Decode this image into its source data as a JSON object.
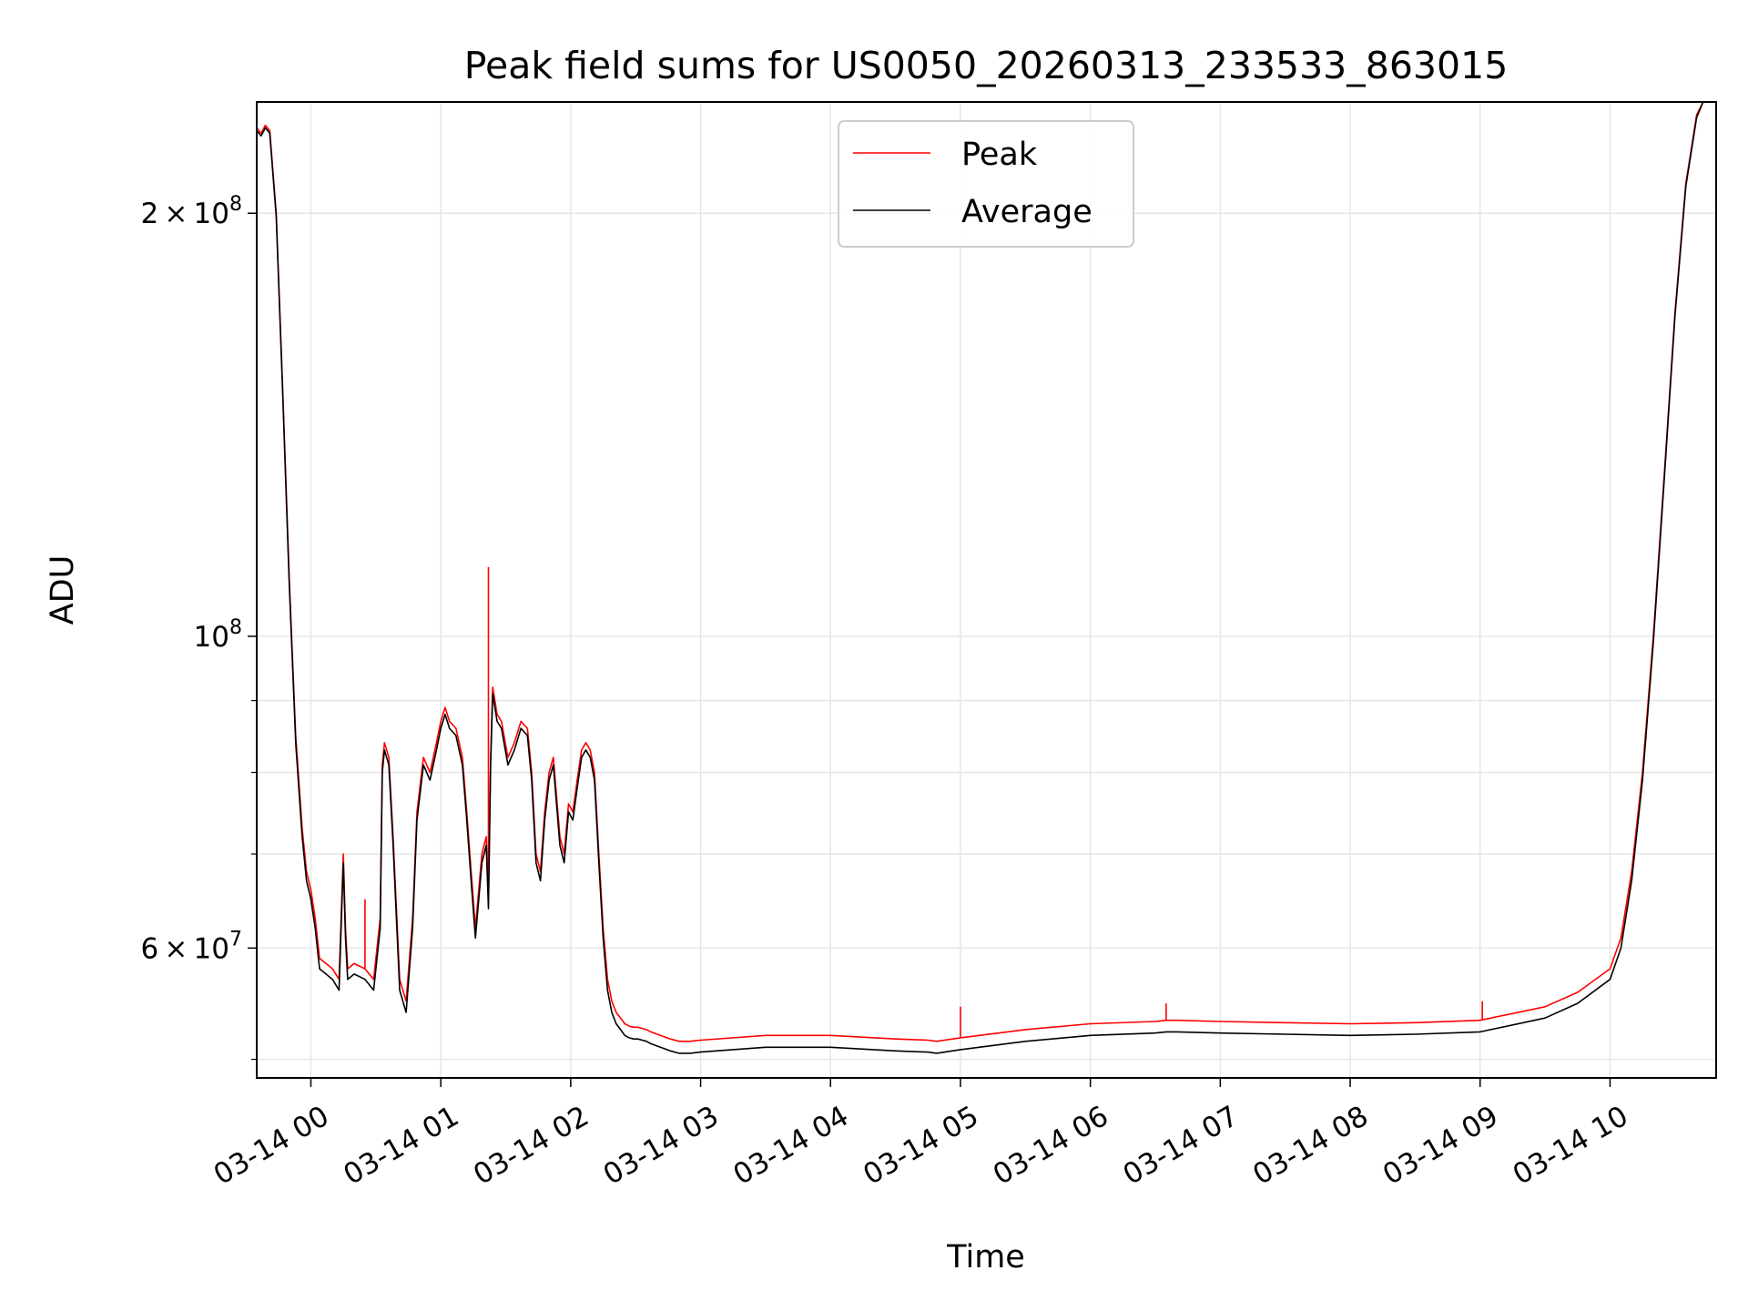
{
  "chart_data": {
    "type": "line",
    "title": "Peak field sums for US0050_20260313_233533_863015",
    "xlabel": "Time",
    "ylabel": "ADU",
    "y_scale": "log",
    "ylim": [
      48500000,
      240000000
    ],
    "xlim": [
      "03-13 23:35",
      "03-14 10:49"
    ],
    "grid": true,
    "legend_position": "top-center",
    "x_ticks": [
      {
        "at": "03-14 00:00",
        "label": "03-14 00"
      },
      {
        "at": "03-14 01:00",
        "label": "03-14 01"
      },
      {
        "at": "03-14 02:00",
        "label": "03-14 02"
      },
      {
        "at": "03-14 03:00",
        "label": "03-14 03"
      },
      {
        "at": "03-14 04:00",
        "label": "03-14 04"
      },
      {
        "at": "03-14 05:00",
        "label": "03-14 05"
      },
      {
        "at": "03-14 06:00",
        "label": "03-14 06"
      },
      {
        "at": "03-14 07:00",
        "label": "03-14 07"
      },
      {
        "at": "03-14 08:00",
        "label": "03-14 08"
      },
      {
        "at": "03-14 09:00",
        "label": "03-14 09"
      },
      {
        "at": "03-14 10:00",
        "label": "03-14 10"
      }
    ],
    "y_ticks": [
      {
        "value": 60000000,
        "mantissa": "6",
        "exp": "7"
      },
      {
        "value": 100000000,
        "mantissa": "",
        "exp": "8"
      },
      {
        "value": 200000000,
        "mantissa": "2",
        "exp": "8"
      }
    ],
    "y_minor_ticks": [
      50000000,
      70000000,
      80000000,
      90000000
    ],
    "series": [
      {
        "name": "Peak",
        "color": "#ff0000",
        "x": [
          "03-13 23:35",
          "03-13 23:37",
          "03-13 23:39",
          "03-13 23:41",
          "03-13 23:44",
          "03-13 23:47",
          "03-13 23:50",
          "03-13 23:53",
          "03-13 23:56",
          "03-13 23:58",
          "03-14 00:00",
          "03-14 00:02",
          "03-14 00:04",
          "03-14 00:07",
          "03-14 00:10",
          "03-14 00:13",
          "03-14 00:15",
          "03-14 00:16",
          "03-14 00:17",
          "03-14 00:20",
          "03-14 00:25",
          "03-14 00:29",
          "03-14 00:32",
          "03-14 00:33",
          "03-14 00:34",
          "03-14 00:36",
          "03-14 00:38",
          "03-14 00:41",
          "03-14 00:44",
          "03-14 00:47",
          "03-14 00:49",
          "03-14 00:52",
          "03-14 00:55",
          "03-14 00:58",
          "03-14 01:00",
          "03-14 01:02",
          "03-14 01:04",
          "03-14 01:07",
          "03-14 01:10",
          "03-14 01:12",
          "03-14 01:14",
          "03-14 01:16",
          "03-14 01:19",
          "03-14 01:21",
          "03-14 01:22",
          "03-14 01:23",
          "03-14 01:24",
          "03-14 01:25",
          "03-14 01:26",
          "03-14 01:28",
          "03-14 01:31",
          "03-14 01:34",
          "03-14 01:37",
          "03-14 01:40",
          "03-14 01:42",
          "03-14 01:44",
          "03-14 01:46",
          "03-14 01:48",
          "03-14 01:50",
          "03-14 01:52",
          "03-14 01:55",
          "03-14 01:57",
          "03-14 01:59",
          "03-14 02:01",
          "03-14 02:03",
          "03-14 02:05",
          "03-14 02:07",
          "03-14 02:09",
          "03-14 02:11",
          "03-14 02:13",
          "03-14 02:15",
          "03-14 02:17",
          "03-14 02:19",
          "03-14 02:21",
          "03-14 02:23",
          "03-14 02:25",
          "03-14 02:27",
          "03-14 02:29",
          "03-14 02:31",
          "03-14 02:33",
          "03-14 02:35",
          "03-14 02:37",
          "03-14 02:40",
          "03-14 02:43",
          "03-14 02:46",
          "03-14 02:50",
          "03-14 02:55",
          "03-14 03:00",
          "03-14 03:30",
          "03-14 04:00",
          "03-14 04:30",
          "03-14 04:45",
          "03-14 04:49",
          "03-14 05:00",
          "03-14 05:30",
          "03-14 06:00",
          "03-14 06:30",
          "03-14 06:35",
          "03-14 06:40",
          "03-14 07:00",
          "03-14 07:30",
          "03-14 08:00",
          "03-14 08:30",
          "03-14 09:00",
          "03-14 09:30",
          "03-14 09:45",
          "03-14 10:00",
          "03-14 10:05",
          "03-14 10:10",
          "03-14 10:15",
          "03-14 10:20",
          "03-14 10:25",
          "03-14 10:30",
          "03-14 10:35",
          "03-14 10:40",
          "03-14 10:43",
          "03-14 10:46",
          "03-14 10:49"
        ],
        "values": [
          230000000,
          228000000,
          231000000,
          229000000,
          200000000,
          150000000,
          110000000,
          85000000,
          73000000,
          68000000,
          66000000,
          63000000,
          59000000,
          58500000,
          58000000,
          57000000,
          70000000,
          62000000,
          58000000,
          58500000,
          58000000,
          57000000,
          63000000,
          81000000,
          84000000,
          82000000,
          72000000,
          57000000,
          55000000,
          63000000,
          75000000,
          82000000,
          80000000,
          84000000,
          87000000,
          89000000,
          87000000,
          86000000,
          82000000,
          75000000,
          68000000,
          62000000,
          70000000,
          72000000,
          65000000,
          82000000,
          92000000,
          90000000,
          88000000,
          87000000,
          82000000,
          84000000,
          87000000,
          86000000,
          80000000,
          70000000,
          68000000,
          75000000,
          80000000,
          82000000,
          72000000,
          70000000,
          76000000,
          75000000,
          79000000,
          83000000,
          84000000,
          83000000,
          80000000,
          70000000,
          62000000,
          57000000,
          55000000,
          54000000,
          53500000,
          53000000,
          52800000,
          52700000,
          52700000,
          52600000,
          52500000,
          52300000,
          52100000,
          51900000,
          51700000,
          51500000,
          51500000,
          51600000,
          52000000,
          52000000,
          51700000,
          51600000,
          51500000,
          51800000,
          52500000,
          53000000,
          53200000,
          53300000,
          53300000,
          53200000,
          53100000,
          53000000,
          53100000,
          53300000,
          54500000,
          55800000,
          58000000,
          61000000,
          68000000,
          80000000,
          100000000,
          130000000,
          170000000,
          210000000,
          235000000,
          240000000,
          240000000,
          240000000
        ],
        "spikes": [
          {
            "x": "03-14 00:25",
            "value": 65000000
          },
          {
            "x": "03-14 01:22",
            "value": 112000000
          },
          {
            "x": "03-14 05:00",
            "value": 54500000
          },
          {
            "x": "03-14 06:35",
            "value": 54800000
          },
          {
            "x": "03-14 09:01",
            "value": 55000000
          }
        ]
      },
      {
        "name": "Average",
        "color": "#000000",
        "x": [
          "03-13 23:35",
          "03-13 23:37",
          "03-13 23:39",
          "03-13 23:41",
          "03-13 23:44",
          "03-13 23:47",
          "03-13 23:50",
          "03-13 23:53",
          "03-13 23:56",
          "03-13 23:58",
          "03-14 00:00",
          "03-14 00:02",
          "03-14 00:04",
          "03-14 00:07",
          "03-14 00:10",
          "03-14 00:13",
          "03-14 00:15",
          "03-14 00:16",
          "03-14 00:17",
          "03-14 00:20",
          "03-14 00:25",
          "03-14 00:29",
          "03-14 00:32",
          "03-14 00:33",
          "03-14 00:34",
          "03-14 00:36",
          "03-14 00:38",
          "03-14 00:41",
          "03-14 00:44",
          "03-14 00:47",
          "03-14 00:49",
          "03-14 00:52",
          "03-14 00:55",
          "03-14 00:58",
          "03-14 01:00",
          "03-14 01:02",
          "03-14 01:04",
          "03-14 01:07",
          "03-14 01:10",
          "03-14 01:12",
          "03-14 01:14",
          "03-14 01:16",
          "03-14 01:19",
          "03-14 01:21",
          "03-14 01:22",
          "03-14 01:23",
          "03-14 01:24",
          "03-14 01:25",
          "03-14 01:26",
          "03-14 01:28",
          "03-14 01:31",
          "03-14 01:34",
          "03-14 01:37",
          "03-14 01:40",
          "03-14 01:42",
          "03-14 01:44",
          "03-14 01:46",
          "03-14 01:48",
          "03-14 01:50",
          "03-14 01:52",
          "03-14 01:55",
          "03-14 01:57",
          "03-14 01:59",
          "03-14 02:01",
          "03-14 02:03",
          "03-14 02:05",
          "03-14 02:07",
          "03-14 02:09",
          "03-14 02:11",
          "03-14 02:13",
          "03-14 02:15",
          "03-14 02:17",
          "03-14 02:19",
          "03-14 02:21",
          "03-14 02:23",
          "03-14 02:25",
          "03-14 02:27",
          "03-14 02:29",
          "03-14 02:31",
          "03-14 02:33",
          "03-14 02:35",
          "03-14 02:37",
          "03-14 02:40",
          "03-14 02:43",
          "03-14 02:46",
          "03-14 02:50",
          "03-14 02:55",
          "03-14 03:00",
          "03-14 03:30",
          "03-14 04:00",
          "03-14 04:30",
          "03-14 04:45",
          "03-14 04:49",
          "03-14 05:00",
          "03-14 05:30",
          "03-14 06:00",
          "03-14 06:30",
          "03-14 06:35",
          "03-14 06:40",
          "03-14 07:00",
          "03-14 07:30",
          "03-14 08:00",
          "03-14 08:30",
          "03-14 09:00",
          "03-14 09:30",
          "03-14 09:45",
          "03-14 10:00",
          "03-14 10:05",
          "03-14 10:10",
          "03-14 10:15",
          "03-14 10:20",
          "03-14 10:25",
          "03-14 10:30",
          "03-14 10:35",
          "03-14 10:40",
          "03-14 10:43",
          "03-14 10:46",
          "03-14 10:49"
        ],
        "values": [
          229000000,
          227000000,
          230000000,
          228000000,
          199000000,
          149000000,
          109000000,
          84000000,
          72000000,
          67000000,
          65000000,
          62000000,
          58000000,
          57500000,
          57000000,
          56000000,
          69000000,
          61000000,
          57000000,
          57500000,
          57000000,
          56000000,
          62000000,
          80000000,
          83000000,
          81000000,
          71000000,
          56000000,
          54000000,
          62000000,
          74000000,
          81000000,
          79000000,
          83000000,
          86000000,
          88000000,
          86000000,
          85000000,
          81000000,
          74000000,
          67000000,
          61000000,
          69000000,
          71000000,
          64000000,
          81000000,
          91000000,
          89000000,
          87000000,
          86000000,
          81000000,
          83000000,
          86000000,
          85000000,
          79000000,
          69000000,
          67000000,
          74000000,
          79000000,
          81000000,
          71000000,
          69000000,
          75000000,
          74000000,
          78000000,
          82000000,
          83000000,
          82000000,
          79000000,
          69000000,
          61000000,
          56000000,
          54000000,
          53000000,
          52500000,
          52000000,
          51800000,
          51700000,
          51700000,
          51600000,
          51500000,
          51300000,
          51100000,
          50900000,
          50700000,
          50500000,
          50500000,
          50600000,
          51000000,
          51000000,
          50700000,
          50600000,
          50500000,
          50800000,
          51500000,
          52000000,
          52200000,
          52300000,
          52300000,
          52200000,
          52100000,
          52000000,
          52100000,
          52300000,
          53500000,
          54800000,
          57000000,
          60000000,
          67000000,
          79000000,
          99000000,
          129000000,
          169000000,
          209000000,
          234000000,
          240000000,
          240000000,
          240000000
        ]
      }
    ]
  }
}
